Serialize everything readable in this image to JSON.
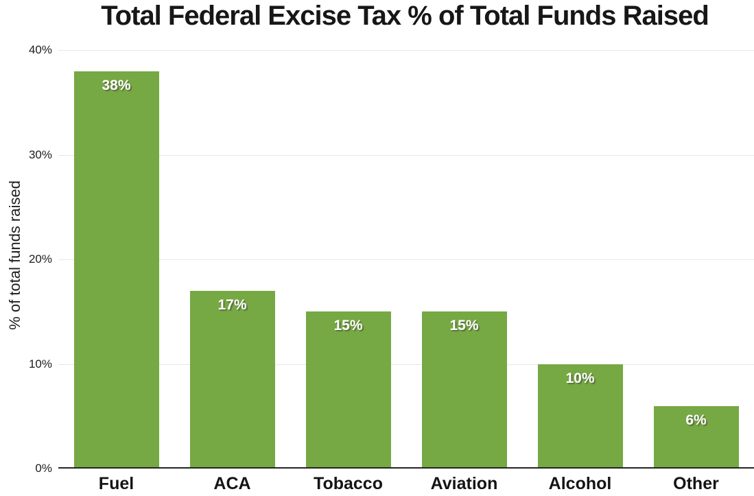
{
  "chart_data": {
    "type": "bar",
    "title": "Total Federal Excise Tax % of Total Funds Raised",
    "ylabel": "% of total funds raised",
    "xlabel": "",
    "categories": [
      "Fuel",
      "ACA",
      "Tobacco",
      "Aviation",
      "Alcohol",
      "Other"
    ],
    "values": [
      38,
      17,
      15,
      15,
      10,
      6
    ],
    "bar_value_labels": [
      "38%",
      "17%",
      "15%",
      "15%",
      "10%",
      "6%"
    ],
    "ylim": [
      0,
      40
    ],
    "yticks": [
      0,
      10,
      20,
      30,
      40
    ],
    "ytick_labels": [
      "0%",
      "10%",
      "20%",
      "30%",
      "40%"
    ],
    "grid": "horizontal",
    "legend_position": "none",
    "bar_color": "#76a843",
    "value_label_color": "#ffffff",
    "axis_line_color": "#242424",
    "gridline_color": "#e7e7e7"
  }
}
